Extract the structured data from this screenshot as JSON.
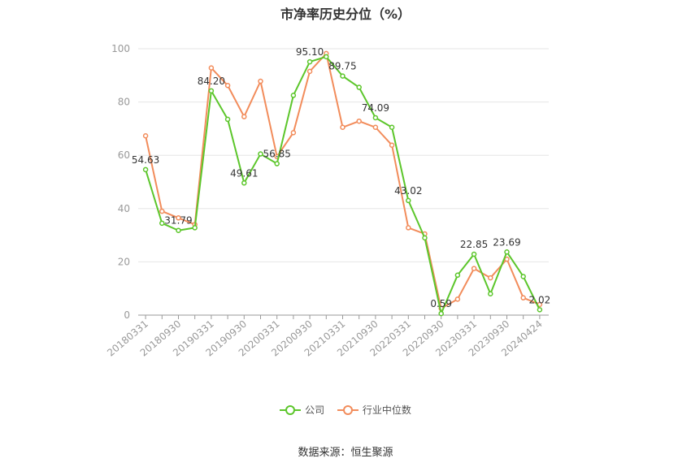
{
  "title": "市净率历史分位（%）",
  "source": "数据来源：恒生聚源",
  "legend": {
    "company": "公司",
    "industry": "行业中位数"
  },
  "colors": {
    "company": "#5cc62b",
    "industry": "#f28c5b",
    "grid": "#e6e6e6",
    "axis": "#999999"
  },
  "chart_data": {
    "type": "line",
    "title": "市净率历史分位（%）",
    "ylim": [
      0,
      100
    ],
    "yticks": [
      0,
      20,
      40,
      60,
      80,
      100
    ],
    "grid": true,
    "legend_position": "bottom",
    "x": [
      "20180331",
      "20180630",
      "20180930",
      "20181231",
      "20190331",
      "20190630",
      "20190930",
      "20191231",
      "20200331",
      "20200630",
      "20200930",
      "20201231",
      "20210331",
      "20210630",
      "20210930",
      "20211231",
      "20220331",
      "20220630",
      "20220930",
      "20221231",
      "20230331",
      "20230630",
      "20230930",
      "20231231",
      "20240424"
    ],
    "x_tick_labels": [
      "20180331",
      "20180930",
      "20190331",
      "20190930",
      "20200331",
      "20200930",
      "20210331",
      "20210930",
      "20220331",
      "20220930",
      "20230331",
      "20230930",
      "20240424"
    ],
    "series": [
      {
        "name": "公司",
        "values": [
          54.63,
          34.5,
          31.79,
          32.8,
          84.2,
          73.5,
          49.61,
          60.5,
          56.85,
          82.5,
          95.1,
          97.0,
          89.75,
          85.5,
          74.09,
          70.5,
          43.02,
          29.0,
          0.59,
          15.0,
          22.85,
          8.0,
          23.69,
          14.5,
          2.02
        ]
      },
      {
        "name": "行业中位数",
        "values": [
          67.3,
          39.0,
          36.5,
          34.0,
          92.8,
          86.2,
          74.5,
          87.8,
          59.5,
          68.5,
          91.5,
          98.2,
          70.5,
          72.8,
          70.5,
          63.8,
          32.8,
          30.5,
          2.5,
          6.0,
          17.5,
          14.0,
          21.0,
          6.5,
          4.0
        ]
      }
    ],
    "data_labels": [
      {
        "index": 0,
        "text": "54.63"
      },
      {
        "index": 2,
        "text": "31.79"
      },
      {
        "index": 4,
        "text": "84.20"
      },
      {
        "index": 6,
        "text": "49.61"
      },
      {
        "index": 8,
        "text": "56.85"
      },
      {
        "index": 10,
        "text": "95.10"
      },
      {
        "index": 12,
        "text": "89.75"
      },
      {
        "index": 14,
        "text": "74.09"
      },
      {
        "index": 16,
        "text": "43.02"
      },
      {
        "index": 18,
        "text": "0.59"
      },
      {
        "index": 20,
        "text": "22.85"
      },
      {
        "index": 22,
        "text": "23.69"
      },
      {
        "index": 24,
        "text": "2.02"
      }
    ]
  }
}
